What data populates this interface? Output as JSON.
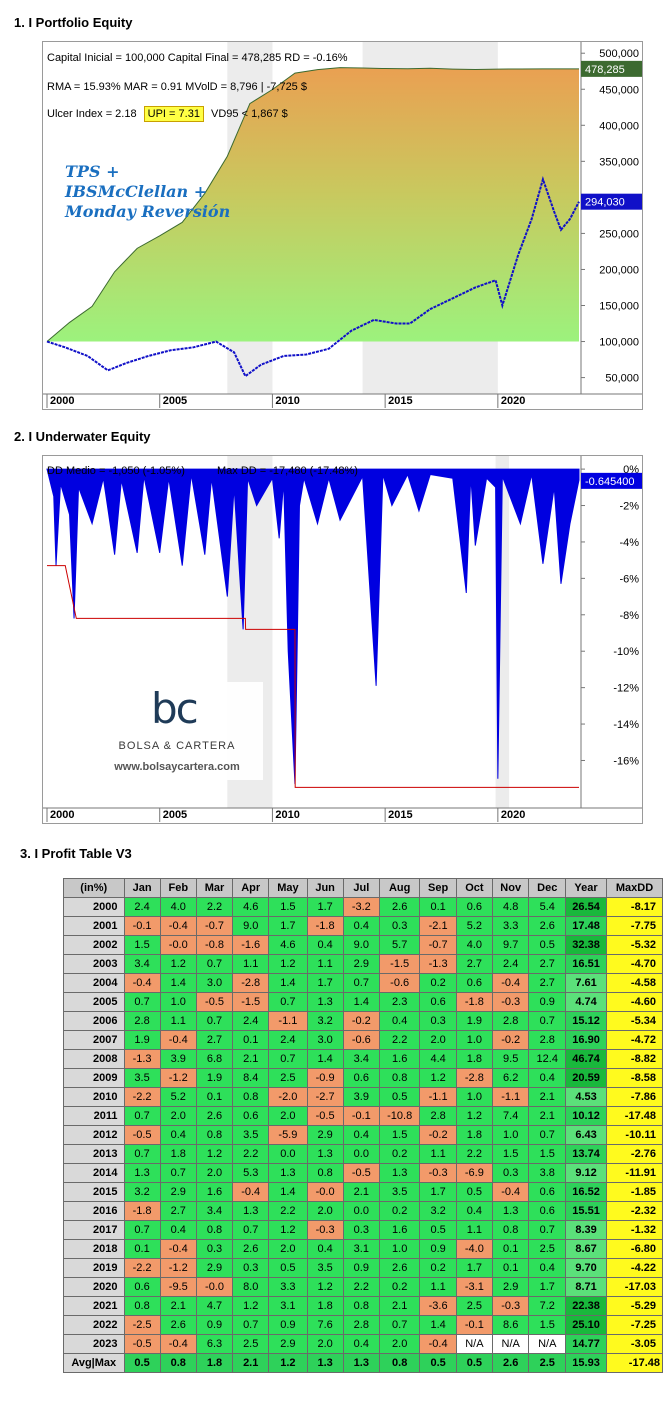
{
  "section1": {
    "title": "1. I Portfolio Equity"
  },
  "section2": {
    "title": "2. I Underwater Equity"
  },
  "section3": {
    "title": "3. I Profit Table V3"
  },
  "chart_data": [
    {
      "type": "area",
      "stats_line1": "Capital Inicial = 100,000  Capital Final = 478,285   RD = -0.16%",
      "stats_line2": "RMA = 15.93%   MAR = 0.91   MVolD = 8,796 | -7,725 $",
      "stats_line3_a": "Ulcer Index = 2.18",
      "stats_line3_b": "UPI = 7.31",
      "stats_line3_c": "VD95 < 1,867 $",
      "system_name_1": "TPS +",
      "system_name_2": "IBSMcClellan +",
      "system_name_3": "Monday Reversión",
      "ylim": [
        30000,
        510000
      ],
      "yticks": [
        50000,
        100000,
        150000,
        200000,
        250000,
        300000,
        350000,
        400000,
        450000,
        500000
      ],
      "ytick_labels": [
        "50,000",
        "100,000",
        "150,000",
        "200,000",
        "250,000",
        "300,000",
        "350,000",
        "400,000",
        "450,000",
        "500,000"
      ],
      "xlim": [
        2000,
        2023.6
      ],
      "xticks": [
        2000,
        2005,
        2010,
        2015,
        2020
      ],
      "xtick_labels": [
        "2000",
        "2005",
        "2010",
        "2015",
        "2020"
      ],
      "series": [
        {
          "x": [
            2000,
            2001,
            2002,
            2003,
            2004,
            2005,
            2006,
            2007,
            2008,
            2009,
            2010,
            2011,
            2012,
            2013,
            2014,
            2015,
            2016,
            2017,
            2018,
            2019,
            2020,
            2021,
            2022,
            2023,
            2023.6
          ],
          "values": [
            100000,
            126540,
            148680,
            196800,
            229260,
            246700,
            265340,
            305460,
            357080,
            430140,
            449630,
            472380,
            477160,
            479920,
            479560,
            478700,
            478420,
            479100,
            477950,
            477400,
            478000,
            478120,
            478200,
            478250,
            478285
          ]
        },
        {
          "name": "",
          "x": [
            2000,
            2000.8,
            2001.8,
            2002.7,
            2003.5,
            2004.5,
            2005.5,
            2006.5,
            2007.5,
            2008.3,
            2008.8,
            2009.5,
            2010.5,
            2011.5,
            2012.5,
            2013.5,
            2014.5,
            2015.5,
            2016.1,
            2017,
            2018,
            2019,
            2019.9,
            2020.2,
            2020.9,
            2021.5,
            2022,
            2022.5,
            2022.8,
            2023.2,
            2023.6
          ],
          "values": [
            100000,
            92000,
            80000,
            60000,
            70000,
            80000,
            88000,
            92000,
            100000,
            85000,
            52000,
            68000,
            80000,
            82000,
            90000,
            115000,
            130000,
            125000,
            125000,
            145000,
            160000,
            175000,
            185000,
            150000,
            220000,
            270000,
            325000,
            280000,
            255000,
            270000,
            294030
          ]
        }
      ],
      "last_value_label": "478,285",
      "bh_value_label": "294,030"
    },
    {
      "type": "area",
      "dd_medio": "DD Medio = -1,050 (-1.05%)",
      "max_dd": "Max DD = -17,480 (-17.48%)",
      "ylim": [
        -18.5,
        0.5
      ],
      "yticks": [
        0,
        -2,
        -4,
        -6,
        -8,
        -10,
        -12,
        -14,
        -16
      ],
      "ytick_labels": [
        "0%",
        "-2%",
        "-4%",
        "-6%",
        "-8%",
        "-10%",
        "-12%",
        "-14%",
        "-16%"
      ],
      "xlim": [
        2000,
        2023.6
      ],
      "xticks": [
        2000,
        2005,
        2010,
        2015,
        2020
      ],
      "xtick_labels": [
        "2000",
        "2005",
        "2010",
        "2015",
        "2020"
      ],
      "series": [
        {
          "x": [
            2000,
            2000.3,
            2000.4,
            2000.6,
            2001,
            2001.2,
            2001.4,
            2002,
            2002.5,
            2003,
            2003.3,
            2004,
            2004.3,
            2005,
            2005.4,
            2006,
            2006.4,
            2007,
            2007.3,
            2008,
            2008.3,
            2008.7,
            2008.9,
            2009.3,
            2010,
            2010.3,
            2010.5,
            2010.7,
            2011,
            2011.2,
            2011.4,
            2012,
            2012.5,
            2013,
            2014,
            2014.6,
            2014.9,
            2015.3,
            2016,
            2016.5,
            2017,
            2018,
            2018.6,
            2018.8,
            2019,
            2019.5,
            2019.9,
            2020.0,
            2020.2,
            2021,
            2021.5,
            2022,
            2022.5,
            2022.8,
            2023.2,
            2023.6
          ],
          "values": [
            0,
            -1.5,
            -5.3,
            -0.8,
            -2.5,
            -8.2,
            -1,
            -3,
            -0.5,
            -4.7,
            -0.6,
            -4.6,
            -0.4,
            -4.6,
            -0.5,
            -5.3,
            -0.3,
            -4.7,
            -0.5,
            -7,
            -1,
            -8.8,
            -0.5,
            -2,
            -0.5,
            -3.8,
            -0.7,
            -10,
            -17.3,
            -2,
            -0.5,
            -3,
            -0.5,
            -2.8,
            -0.4,
            -11.9,
            -0.3,
            -2,
            -0.3,
            -2.3,
            -0.3,
            -0.5,
            -6.8,
            -0.4,
            -4.2,
            -0.5,
            -1,
            -17.0,
            -0.4,
            -3,
            -0.3,
            -5.2,
            -1,
            -6.3,
            -3,
            -0.6
          ]
        },
        {
          "x": [
            2000,
            2000.8,
            2000.81,
            2001.3,
            2001.31,
            2008.8,
            2008.81,
            2011.0,
            2011.01,
            2023.6
          ],
          "values": [
            -5.3,
            -5.3,
            -5.3,
            -8.2,
            -8.2,
            -8.2,
            -8.8,
            -8.8,
            -17.48,
            -17.48
          ]
        }
      ],
      "last_value_label": "-0.645400"
    },
    {
      "type": "table",
      "corner": "(in%)",
      "columns": [
        "Jan",
        "Feb",
        "Mar",
        "Apr",
        "May",
        "Jun",
        "Jul",
        "Aug",
        "Sep",
        "Oct",
        "Nov",
        "Dec",
        "Year",
        "MaxDD"
      ],
      "rows": [
        {
          "year": "2000",
          "cells": [
            "2.4",
            "4.0",
            "2.2",
            "4.6",
            "1.5",
            "1.7",
            "-3.2",
            "2.6",
            "0.1",
            "0.6",
            "4.8",
            "5.4"
          ],
          "total": "26.54",
          "maxdd": "-8.17"
        },
        {
          "year": "2001",
          "cells": [
            "-0.1",
            "-0.4",
            "-0.7",
            "9.0",
            "1.7",
            "-1.8",
            "0.4",
            "0.3",
            "-2.1",
            "5.2",
            "3.3",
            "2.6"
          ],
          "total": "17.48",
          "maxdd": "-7.75"
        },
        {
          "year": "2002",
          "cells": [
            "1.5",
            "-0.0",
            "-0.8",
            "-1.6",
            "4.6",
            "0.4",
            "9.0",
            "5.7",
            "-0.7",
            "4.0",
            "9.7",
            "0.5"
          ],
          "total": "32.38",
          "maxdd": "-5.32"
        },
        {
          "year": "2003",
          "cells": [
            "3.4",
            "1.2",
            "0.7",
            "1.1",
            "1.2",
            "1.1",
            "2.9",
            "-1.5",
            "-1.3",
            "2.7",
            "2.4",
            "2.7"
          ],
          "total": "16.51",
          "maxdd": "-4.70"
        },
        {
          "year": "2004",
          "cells": [
            "-0.4",
            "1.4",
            "3.0",
            "-2.8",
            "1.4",
            "1.7",
            "0.7",
            "-0.6",
            "0.2",
            "0.6",
            "-0.4",
            "2.7"
          ],
          "total": "7.61",
          "maxdd": "-4.58"
        },
        {
          "year": "2005",
          "cells": [
            "0.7",
            "1.0",
            "-0.5",
            "-1.5",
            "0.7",
            "1.3",
            "1.4",
            "2.3",
            "0.6",
            "-1.8",
            "-0.3",
            "0.9"
          ],
          "total": "4.74",
          "maxdd": "-4.60"
        },
        {
          "year": "2006",
          "cells": [
            "2.8",
            "1.1",
            "0.7",
            "2.4",
            "-1.1",
            "3.2",
            "-0.2",
            "0.4",
            "0.3",
            "1.9",
            "2.8",
            "0.7"
          ],
          "total": "15.12",
          "maxdd": "-5.34"
        },
        {
          "year": "2007",
          "cells": [
            "1.9",
            "-0.4",
            "2.7",
            "0.1",
            "2.4",
            "3.0",
            "-0.6",
            "2.2",
            "2.0",
            "1.0",
            "-0.2",
            "2.8"
          ],
          "total": "16.90",
          "maxdd": "-4.72"
        },
        {
          "year": "2008",
          "cells": [
            "-1.3",
            "3.9",
            "6.8",
            "2.1",
            "0.7",
            "1.4",
            "3.4",
            "1.6",
            "4.4",
            "1.8",
            "9.5",
            "12.4"
          ],
          "total": "46.74",
          "maxdd": "-8.82"
        },
        {
          "year": "2009",
          "cells": [
            "3.5",
            "-1.2",
            "1.9",
            "8.4",
            "2.5",
            "-0.9",
            "0.6",
            "0.8",
            "1.2",
            "-2.8",
            "6.2",
            "0.4"
          ],
          "total": "20.59",
          "maxdd": "-8.58"
        },
        {
          "year": "2010",
          "cells": [
            "-2.2",
            "5.2",
            "0.1",
            "0.8",
            "-2.0",
            "-2.7",
            "3.9",
            "0.5",
            "-1.1",
            "1.0",
            "-1.1",
            "2.1"
          ],
          "total": "4.53",
          "maxdd": "-7.86"
        },
        {
          "year": "2011",
          "cells": [
            "0.7",
            "2.0",
            "2.6",
            "0.6",
            "2.0",
            "-0.5",
            "-0.1",
            "-10.8",
            "2.8",
            "1.2",
            "7.4",
            "2.1"
          ],
          "total": "10.12",
          "maxdd": "-17.48"
        },
        {
          "year": "2012",
          "cells": [
            "-0.5",
            "0.4",
            "0.8",
            "3.5",
            "-5.9",
            "2.9",
            "0.4",
            "1.5",
            "-0.2",
            "1.8",
            "1.0",
            "0.7"
          ],
          "total": "6.43",
          "maxdd": "-10.11"
        },
        {
          "year": "2013",
          "cells": [
            "0.7",
            "1.8",
            "1.2",
            "2.2",
            "0.0",
            "1.3",
            "0.0",
            "0.2",
            "1.1",
            "2.2",
            "1.5",
            "1.5"
          ],
          "total": "13.74",
          "maxdd": "-2.76"
        },
        {
          "year": "2014",
          "cells": [
            "1.3",
            "0.7",
            "2.0",
            "5.3",
            "1.3",
            "0.8",
            "-0.5",
            "1.3",
            "-0.3",
            "-6.9",
            "0.3",
            "3.8"
          ],
          "total": "9.12",
          "maxdd": "-11.91"
        },
        {
          "year": "2015",
          "cells": [
            "3.2",
            "2.9",
            "1.6",
            "-0.4",
            "1.4",
            "-0.0",
            "2.1",
            "3.5",
            "1.7",
            "0.5",
            "-0.4",
            "0.6"
          ],
          "total": "16.52",
          "maxdd": "-1.85"
        },
        {
          "year": "2016",
          "cells": [
            "-1.8",
            "2.7",
            "3.4",
            "1.3",
            "2.2",
            "2.0",
            "0.0",
            "0.2",
            "3.2",
            "0.4",
            "1.3",
            "0.6"
          ],
          "total": "15.51",
          "maxdd": "-2.32"
        },
        {
          "year": "2017",
          "cells": [
            "0.7",
            "0.4",
            "0.8",
            "0.7",
            "1.2",
            "-0.3",
            "0.3",
            "1.6",
            "0.5",
            "1.1",
            "0.8",
            "0.7"
          ],
          "total": "8.39",
          "maxdd": "-1.32"
        },
        {
          "year": "2018",
          "cells": [
            "0.1",
            "-0.4",
            "0.3",
            "2.6",
            "2.0",
            "0.4",
            "3.1",
            "1.0",
            "0.9",
            "-4.0",
            "0.1",
            "2.5"
          ],
          "total": "8.67",
          "maxdd": "-6.80"
        },
        {
          "year": "2019",
          "cells": [
            "-2.2",
            "-1.2",
            "2.9",
            "0.3",
            "0.5",
            "3.5",
            "0.9",
            "2.6",
            "0.2",
            "1.7",
            "0.1",
            "0.4"
          ],
          "total": "9.70",
          "maxdd": "-4.22"
        },
        {
          "year": "2020",
          "cells": [
            "0.6",
            "-9.5",
            "-0.0",
            "8.0",
            "3.3",
            "1.2",
            "2.2",
            "0.2",
            "1.1",
            "-3.1",
            "2.9",
            "1.7"
          ],
          "total": "8.71",
          "maxdd": "-17.03"
        },
        {
          "year": "2021",
          "cells": [
            "0.8",
            "2.1",
            "4.7",
            "1.2",
            "3.1",
            "1.8",
            "0.8",
            "2.1",
            "-3.6",
            "2.5",
            "-0.3",
            "7.2"
          ],
          "total": "22.38",
          "maxdd": "-5.29"
        },
        {
          "year": "2022",
          "cells": [
            "-2.5",
            "2.6",
            "0.9",
            "0.7",
            "0.9",
            "7.6",
            "2.8",
            "0.7",
            "1.4",
            "-0.1",
            "8.6",
            "1.5"
          ],
          "total": "25.10",
          "maxdd": "-7.25"
        },
        {
          "year": "2023",
          "cells": [
            "-0.5",
            "-0.4",
            "6.3",
            "2.5",
            "2.9",
            "2.0",
            "0.4",
            "2.0",
            "-0.4",
            "N/A",
            "N/A",
            "N/A"
          ],
          "total": "14.77",
          "maxdd": "-3.05"
        }
      ],
      "avg_row": {
        "label": "Avg|Max",
        "cells": [
          "0.5",
          "0.8",
          "1.8",
          "2.1",
          "1.2",
          "1.3",
          "1.3",
          "0.8",
          "0.5",
          "0.5",
          "2.6",
          "2.5"
        ],
        "total": "15.93",
        "maxdd": "-17.48"
      }
    }
  ],
  "logo": {
    "mark": "bc",
    "name": "BOLSA & CARTERA",
    "url": "www.bolsaycartera.com"
  },
  "colors": {
    "equity_top": "#e8a95a",
    "equity_bottom": "#9bf07a",
    "benchmark": "#1010c8",
    "drawdown": "#0000e0",
    "maxdd_line": "#cc0000",
    "highlight": "#ffff44"
  }
}
